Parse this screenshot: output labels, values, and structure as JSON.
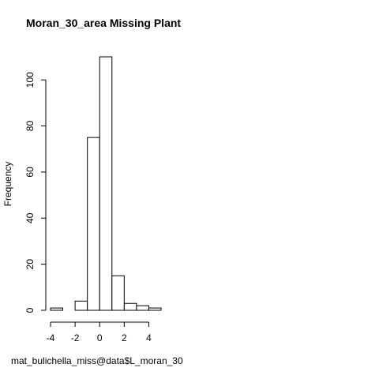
{
  "chart_data": {
    "type": "bar",
    "title": "Moran_30_area Missing Plant",
    "xlabel": "mat_bulichella_miss@data$L_moran_30",
    "ylabel": "Frequency",
    "bin_edges": [
      -4,
      -3,
      -2,
      -1,
      0,
      1,
      2,
      3,
      4,
      5
    ],
    "values": [
      1,
      0,
      4,
      75,
      110,
      15,
      3,
      2,
      1
    ],
    "xlim": [
      -4,
      5
    ],
    "ylim": [
      0,
      110
    ],
    "x_ticks": [
      -4,
      -2,
      0,
      2,
      4
    ],
    "y_ticks": [
      0,
      20,
      40,
      60,
      80,
      100
    ],
    "grid": false,
    "fill": "#ffffff",
    "stroke": "#000000"
  }
}
